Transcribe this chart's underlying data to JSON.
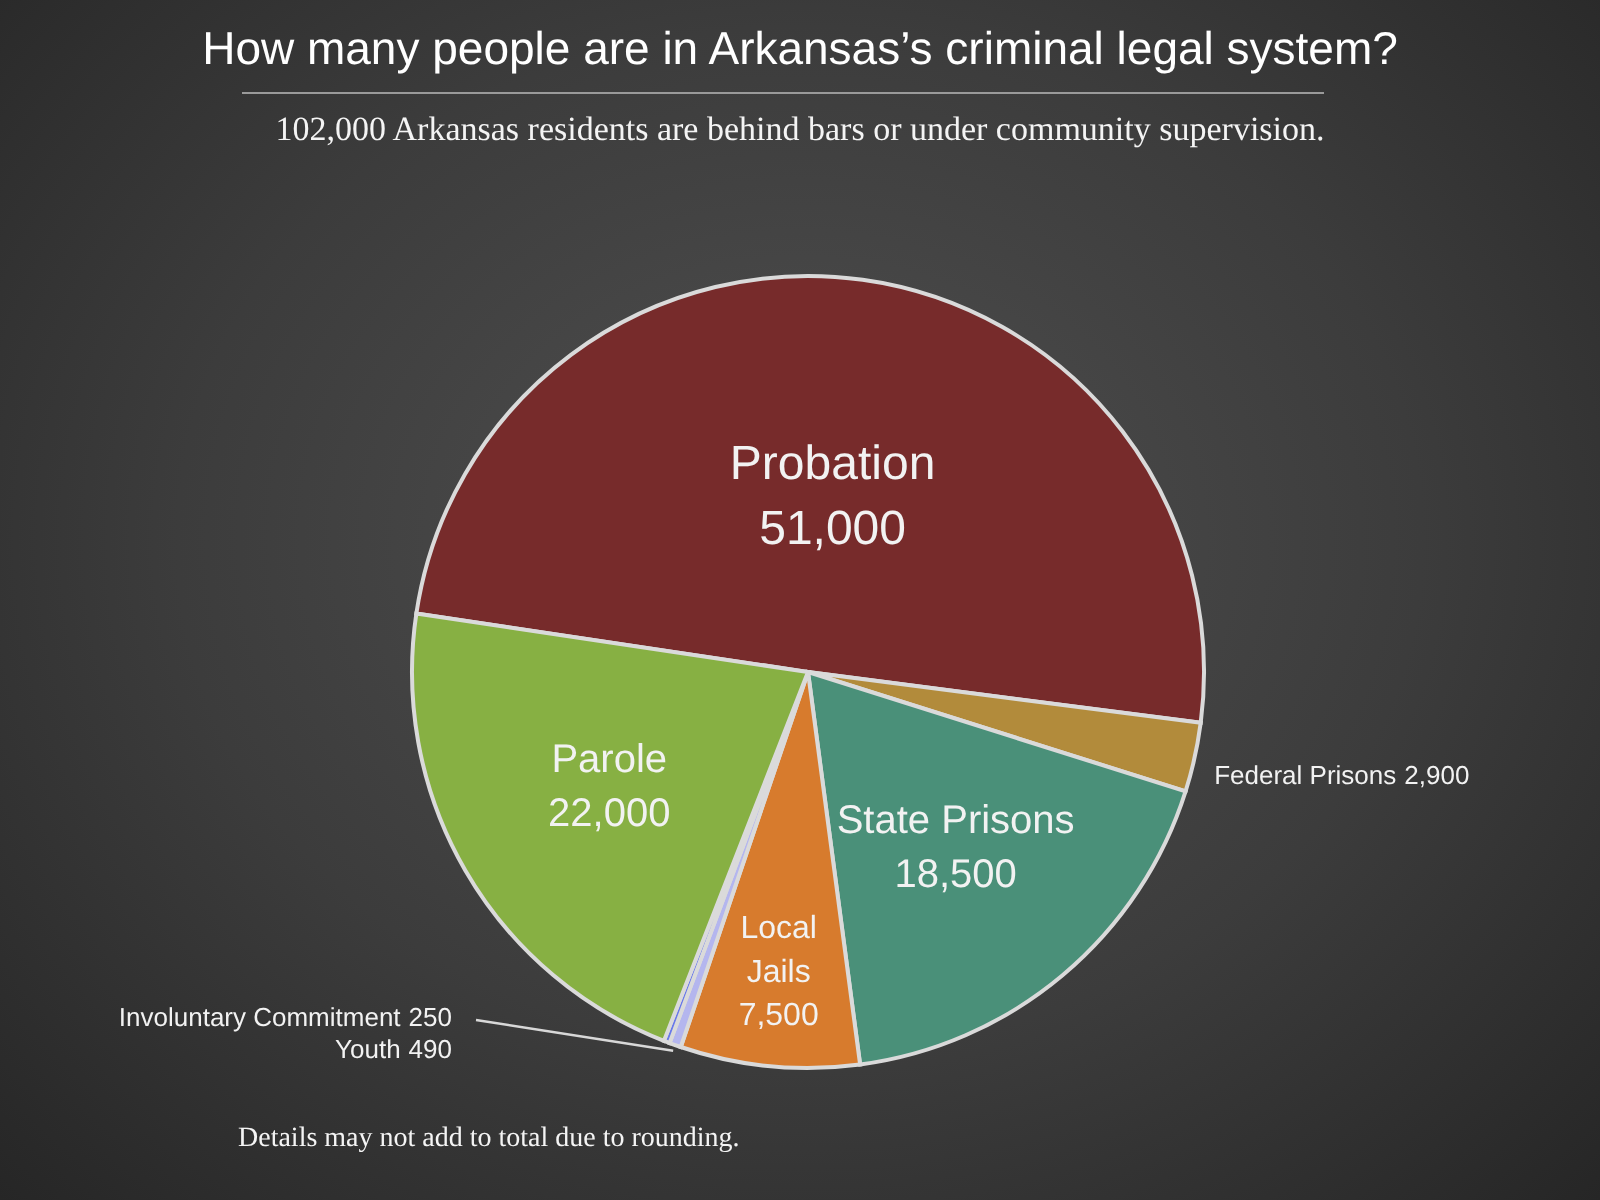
{
  "chart_data": {
    "type": "pie",
    "title": "How many people are in Arkansas’s criminal legal system?",
    "subtitle": "102,000 Arkansas residents are behind bars or under community supervision.",
    "categories": [
      "Probation",
      "Federal Prisons",
      "State Prisons",
      "Local Jails",
      "Youth",
      "Involuntary Commitment",
      "Parole"
    ],
    "values": [
      51000,
      2900,
      18500,
      7500,
      490,
      250,
      22000
    ],
    "value_labels": [
      "51,000",
      "2,900",
      "18,500",
      "7,500",
      "490",
      "250",
      "22,000"
    ],
    "colors": [
      "#772b2b",
      "#b28b3b",
      "#4a9079",
      "#d77b2d",
      "#b4b6ee",
      "#6878ea",
      "#87b043"
    ],
    "annotations": [
      "Details may not add to total due to rounding."
    ]
  }
}
